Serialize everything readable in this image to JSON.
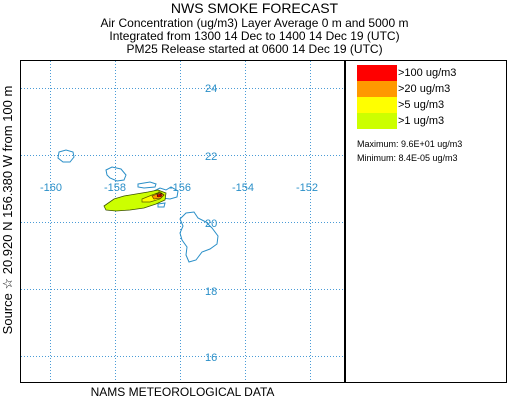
{
  "header": {
    "title": "NWS SMOKE FORECAST",
    "line1": "Air Concentration (ug/m3) Layer Average     0 m and  5000 m",
    "line2": "Integrated from 1300 14 Dec to 1400 14 Dec 19 (UTC)",
    "line3": "PM25 Release started at 0600 14 Dec 19 (UTC)"
  },
  "map": {
    "latitudes": [
      "24",
      "22",
      "20",
      "18",
      "16"
    ],
    "longitudes": [
      "-160",
      "-158",
      "-156",
      "-154",
      "-152"
    ],
    "source_marker": "☆",
    "colors": {
      "grid": "#4a9bd6",
      "coastline": "#2a8fc8",
      "label": "#2a8fc8"
    }
  },
  "side_label": "Source ☆  20.920  N 156.380  W     from  100 m",
  "footer": "NAMS METEOROLOGICAL DATA",
  "legend": {
    "items": [
      {
        "label": ">100 ug/m3",
        "color": "#ff0000"
      },
      {
        "label": ">20 ug/m3",
        "color": "#ff9900"
      },
      {
        "label": ">5 ug/m3",
        "color": "#ffff00"
      },
      {
        "label": ">1 ug/m3",
        "color": "#ccff00"
      }
    ],
    "maximum": "Maximum:  9.6E+01 ug/m3",
    "minimum": "Minimum:  8.4E-05 ug/m3"
  }
}
